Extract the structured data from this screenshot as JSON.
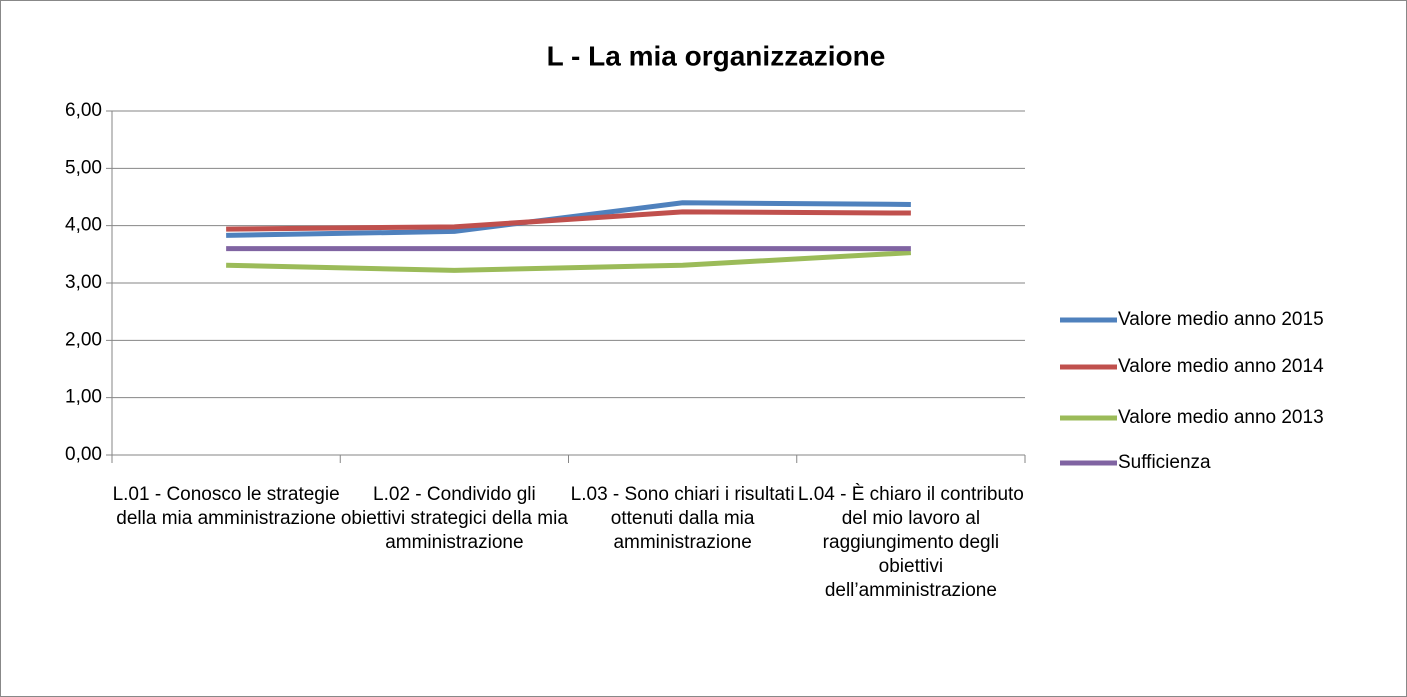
{
  "chart_data": {
    "type": "line",
    "title": "L - La mia organizzazione",
    "categories": [
      "L.01 - Conosco le strategie della mia amministrazione",
      "L.02 - Condivido gli obiettivi strategici della mia amministrazione",
      "L.03 - Sono chiari i risultati ottenuti dalla mia amministrazione",
      "L.04 - È chiaro il contributo del mio lavoro al raggiungimento degli obiettivi dell’amministrazione"
    ],
    "series": [
      {
        "name": "Valore medio anno 2015",
        "color": "#4f81bd",
        "values": [
          3.83,
          3.9,
          4.4,
          4.37
        ]
      },
      {
        "name": "Valore medio anno 2014",
        "color": "#c0504d",
        "values": [
          3.94,
          3.98,
          4.24,
          4.22
        ]
      },
      {
        "name": "Valore medio anno 2013",
        "color": "#9bbb59",
        "values": [
          3.31,
          3.22,
          3.31,
          3.53
        ]
      },
      {
        "name": "Sufficienza",
        "color": "#8064a2",
        "values": [
          3.6,
          3.6,
          3.6,
          3.6
        ]
      }
    ],
    "ylim": [
      0,
      6
    ],
    "yticks": [
      {
        "value": 0,
        "label": "0,00"
      },
      {
        "value": 1,
        "label": "1,00"
      },
      {
        "value": 2,
        "label": "2,00"
      },
      {
        "value": 3,
        "label": "3,00"
      },
      {
        "value": 4,
        "label": "4,00"
      },
      {
        "value": 5,
        "label": "5,00"
      },
      {
        "value": 6,
        "label": "6,00"
      }
    ],
    "grid": true,
    "legend": "right"
  }
}
